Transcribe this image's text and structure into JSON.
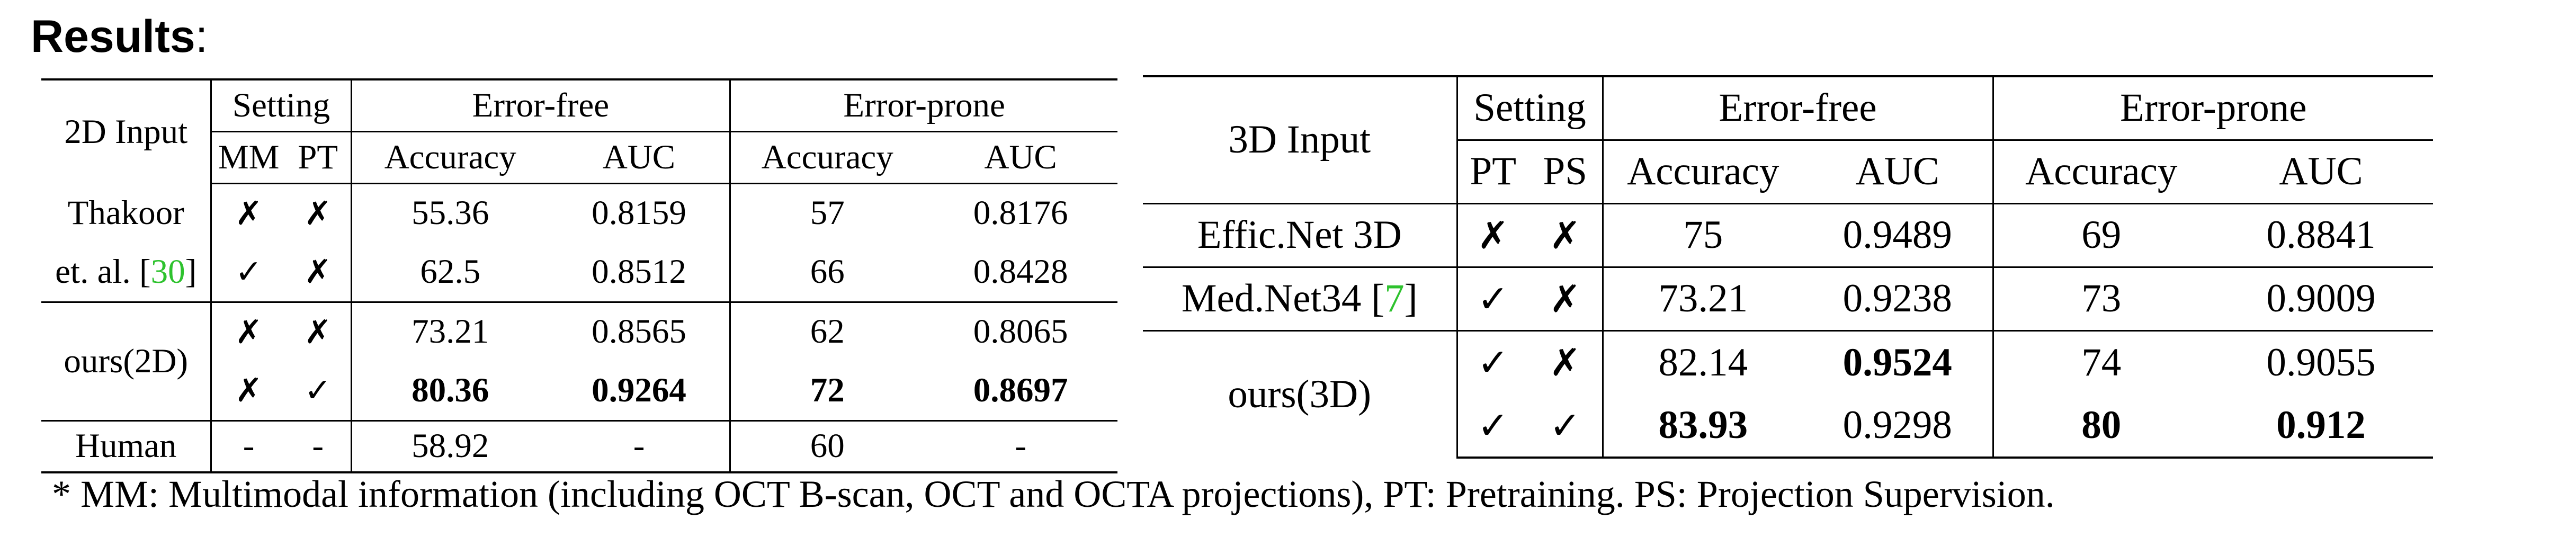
{
  "heading": {
    "bold": "Results",
    "suffix": ":"
  },
  "table_2d": {
    "input_header": "2D Input",
    "setting_header": "Setting",
    "setting_cols": [
      "MM",
      "PT"
    ],
    "error_free_header": "Error-free",
    "error_prone_header": "Error-prone",
    "metric_cols": [
      "Accuracy",
      "AUC",
      "Accuracy",
      "AUC"
    ],
    "thakoor_line1": "Thakoor",
    "thakoor_line2": "et. al. [",
    "thakoor_ref": "30",
    "thakoor_close": "]",
    "ours_label": "ours(2D)",
    "human_label": "Human",
    "rows": [
      {
        "mm": "✗",
        "pt": "✗",
        "ef_acc": "55.36",
        "ef_auc": "0.8159",
        "ep_acc": "57",
        "ep_auc": "0.8176"
      },
      {
        "mm": "✓",
        "pt": "✗",
        "ef_acc": "62.5",
        "ef_auc": "0.8512",
        "ep_acc": "66",
        "ep_auc": "0.8428"
      },
      {
        "mm": "✗",
        "pt": "✗",
        "ef_acc": "73.21",
        "ef_auc": "0.8565",
        "ep_acc": "62",
        "ep_auc": "0.8065"
      },
      {
        "mm": "✗",
        "pt": "✓",
        "ef_acc": "80.36",
        "ef_auc": "0.9264",
        "ep_acc": "72",
        "ep_auc": "0.8697"
      },
      {
        "mm": "-",
        "pt": "-",
        "ef_acc": "58.92",
        "ef_auc": "-",
        "ep_acc": "60",
        "ep_auc": "-"
      }
    ]
  },
  "table_3d": {
    "input_header": "3D Input",
    "setting_header": "Setting",
    "setting_cols": [
      "PT",
      "PS"
    ],
    "error_free_header": "Error-free",
    "error_prone_header": "Error-prone",
    "metric_cols": [
      "Accuracy",
      "AUC",
      "Accuracy",
      "AUC"
    ],
    "effic_label": "Effic.Net 3D",
    "mednet_label": "Med.Net34 [",
    "mednet_ref": "7",
    "mednet_close": "]",
    "ours_label": "ours(3D)",
    "rows": [
      {
        "pt": "✗",
        "ps": "✗",
        "ef_acc": "75",
        "ef_auc": "0.9489",
        "ep_acc": "69",
        "ep_auc": "0.8841"
      },
      {
        "pt": "✓",
        "ps": "✗",
        "ef_acc": "73.21",
        "ef_auc": "0.9238",
        "ep_acc": "73",
        "ep_auc": "0.9009"
      },
      {
        "pt": "✓",
        "ps": "✗",
        "ef_acc": "82.14",
        "ef_auc": "0.9524",
        "ep_acc": "74",
        "ep_auc": "0.9055"
      },
      {
        "pt": "✓",
        "ps": "✓",
        "ef_acc": "83.93",
        "ef_auc": "0.9298",
        "ep_acc": "80",
        "ep_auc": "0.912"
      }
    ]
  },
  "footnote": "* MM: Multimodal information (including OCT B-scan, OCT and OCTA projections), PT: Pretraining. PS: Projection Supervision."
}
